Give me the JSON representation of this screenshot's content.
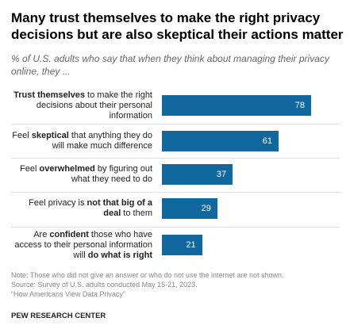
{
  "chart_data": {
    "type": "bar",
    "title": "Many trust themselves to make the right privacy decisions but are also skeptical their actions matter",
    "subtitle": "% of U.S. adults who say that when they think about managing their privacy online, they ...",
    "categories": [
      [
        {
          "text": "Trust themselves",
          "bold": true
        },
        {
          "text": " to make the right decisions about their personal information",
          "bold": false
        }
      ],
      [
        {
          "text": "Feel ",
          "bold": false
        },
        {
          "text": "skeptical",
          "bold": true
        },
        {
          "text": " that anything they do will make much difference",
          "bold": false
        }
      ],
      [
        {
          "text": "Feel ",
          "bold": false
        },
        {
          "text": "overwhelmed",
          "bold": true
        },
        {
          "text": " by figuring out what they need to do",
          "bold": false
        }
      ],
      [
        {
          "text": "Feel privacy is ",
          "bold": false
        },
        {
          "text": "not that big of a deal",
          "bold": true
        },
        {
          "text": " to them",
          "bold": false
        }
      ],
      [
        {
          "text": "Are ",
          "bold": false
        },
        {
          "text": "confident",
          "bold": true
        },
        {
          "text": " those who have access to their personal information will ",
          "bold": false
        },
        {
          "text": "do what is right",
          "bold": true
        }
      ]
    ],
    "values": [
      78,
      61,
      37,
      29,
      21
    ],
    "color": "#10689f",
    "note": "Note: Those who did not give an answer or who do not use the internet are not shown.",
    "source": "Source: Survey of U.S. adults conducted May 15-21, 2023.",
    "report": "“How Americans View Data Privacy”",
    "brand": "PEW RESEARCH CENTER"
  }
}
